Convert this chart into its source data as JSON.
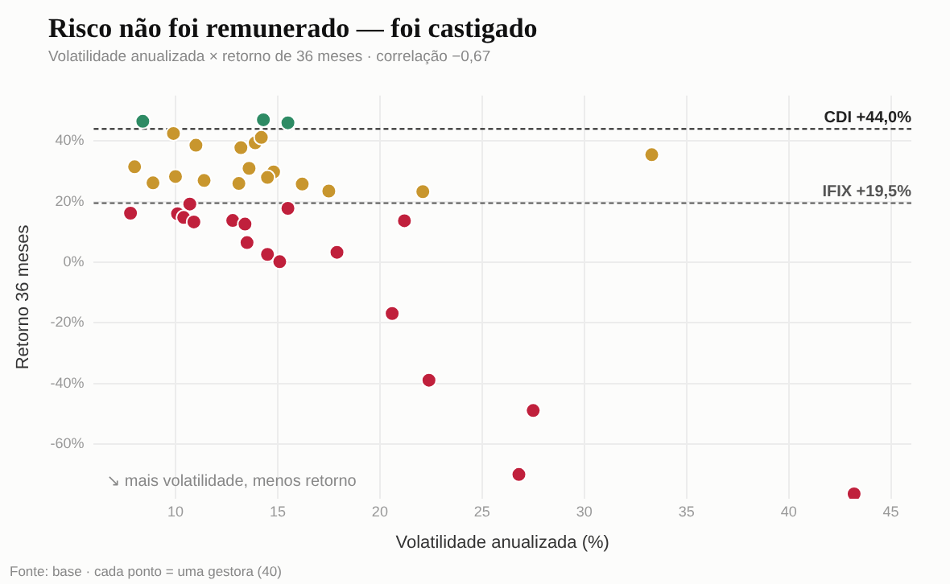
{
  "chart_data": {
    "type": "scatter",
    "title": "Risco não foi remunerado — foi castigado",
    "subtitle": "Volatilidade anualizada × retorno de 36 meses · correlação −0,67",
    "xlabel": "Volatilidade anualizada (%)",
    "ylabel": "Retorno 36 meses",
    "series": [
      {
        "color": "#2e8b64",
        "x": [
          8.4,
          14.3,
          15.5
        ],
        "values": [
          46.5,
          47,
          46
        ]
      },
      {
        "color": "#c8962e",
        "x": [
          9.9,
          11.0,
          13.2,
          13.9,
          14.2,
          8.0,
          13.6,
          14.8,
          14.5,
          8.9,
          10.0,
          11.4,
          13.1,
          16.2,
          17.5,
          22.1,
          33.3
        ],
        "values": [
          42.5,
          38.6,
          37.8,
          39.4,
          41.2,
          31.5,
          31,
          29.8,
          28,
          26.2,
          28.3,
          27,
          26,
          25.8,
          23.5,
          23.3,
          35.5
        ]
      },
      {
        "color": "#c0203c",
        "x": [
          7.8,
          10.1,
          10.4,
          10.7,
          10.9,
          12.8,
          13.4,
          13.5,
          15.5,
          14.5,
          15.1,
          17.9,
          21.2,
          20.6,
          22.4,
          27.5,
          26.8,
          43.2
        ],
        "values": [
          16.2,
          16,
          14.8,
          19.2,
          13.3,
          13.8,
          12.6,
          6.5,
          17.8,
          2.6,
          0.2,
          3.3,
          13.7,
          -16.9,
          -38.9,
          -48.9,
          -70,
          -76.4
        ]
      }
    ],
    "xlim": [
      6,
      46
    ],
    "xticks": [
      10,
      15,
      20,
      25,
      30,
      35,
      40,
      45
    ],
    "ylim": [
      -78,
      55
    ],
    "yticks": [
      {
        "value": -60,
        "label": "-60%"
      },
      {
        "value": -40,
        "label": "-40%"
      },
      {
        "value": -20,
        "label": "-20%"
      },
      {
        "value": 0,
        "label": "0%"
      },
      {
        "value": 20,
        "label": "20%"
      },
      {
        "value": 40,
        "label": "40%"
      }
    ],
    "ref_lines": [
      {
        "axis": "y",
        "value": 44,
        "label": "CDI +44,0%",
        "color": "#222222",
        "line_style": "dashed"
      },
      {
        "axis": "y",
        "value": 19.5,
        "label": "IFIX +19,5%",
        "color": "#555555",
        "line_style": "dashed"
      }
    ],
    "annotations": [
      "↘ mais volatilidade, menos retorno",
      "Fonte: base · cada ponto = uma gestora (40)"
    ],
    "grid": true,
    "legend": false,
    "marker": "circle"
  }
}
